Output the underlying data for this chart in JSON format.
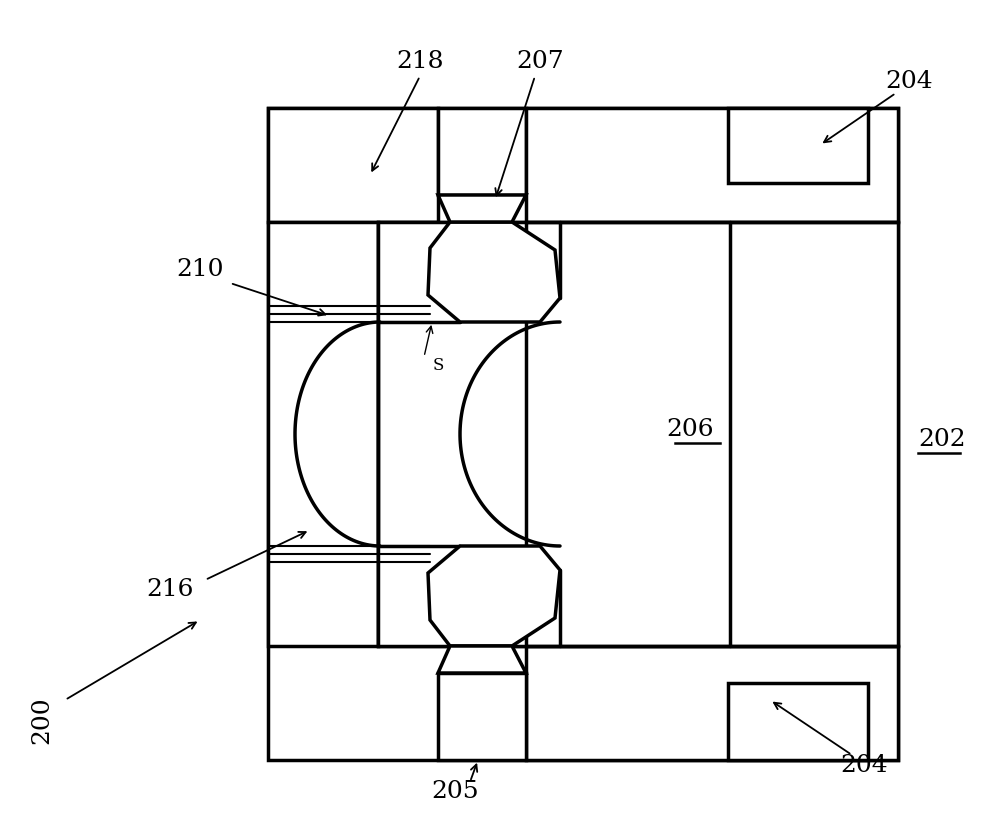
{
  "bg": "#ffffff",
  "lc": "#000000",
  "lw": 2.5,
  "lw2": 1.5,
  "fig_w": 10.0,
  "fig_h": 8.32,
  "dpi": 100
}
